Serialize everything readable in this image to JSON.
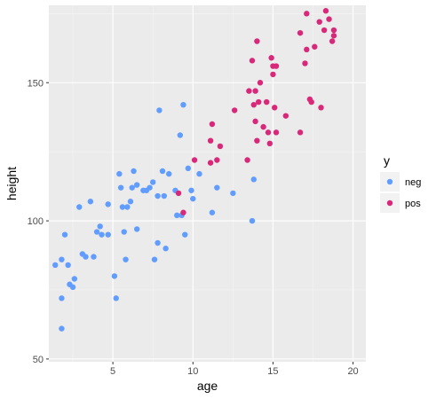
{
  "chart_data": {
    "type": "scatter",
    "title": "",
    "xlabel": "age",
    "ylabel": "height",
    "xlim": [
      1,
      20.8
    ],
    "ylim": [
      49,
      178
    ],
    "x_ticks": [
      5,
      10,
      15,
      20
    ],
    "y_ticks": [
      50,
      100,
      150
    ],
    "grid": true,
    "legend": {
      "title": "y",
      "placement": "right"
    },
    "series": [
      {
        "name": "neg",
        "color": "#619CFF",
        "points": [
          [
            1.4,
            84
          ],
          [
            1.8,
            72
          ],
          [
            1.8,
            86
          ],
          [
            1.8,
            61
          ],
          [
            2.0,
            95
          ],
          [
            2.2,
            84
          ],
          [
            2.3,
            77
          ],
          [
            2.5,
            76
          ],
          [
            2.6,
            79
          ],
          [
            2.9,
            105
          ],
          [
            3.1,
            88
          ],
          [
            3.3,
            87
          ],
          [
            3.6,
            107
          ],
          [
            3.8,
            87
          ],
          [
            4.0,
            96
          ],
          [
            4.2,
            98
          ],
          [
            4.3,
            95
          ],
          [
            4.7,
            95
          ],
          [
            4.7,
            106
          ],
          [
            5.1,
            80
          ],
          [
            5.2,
            72
          ],
          [
            5.4,
            117
          ],
          [
            5.5,
            112
          ],
          [
            5.6,
            105
          ],
          [
            5.7,
            96
          ],
          [
            5.8,
            86
          ],
          [
            5.9,
            105
          ],
          [
            6.1,
            107
          ],
          [
            6.2,
            112
          ],
          [
            6.3,
            118
          ],
          [
            6.5,
            113
          ],
          [
            6.5,
            97
          ],
          [
            6.9,
            111
          ],
          [
            7.1,
            111
          ],
          [
            7.3,
            112
          ],
          [
            7.5,
            114
          ],
          [
            7.6,
            86
          ],
          [
            7.8,
            109
          ],
          [
            7.8,
            92
          ],
          [
            7.9,
            140
          ],
          [
            8.1,
            118
          ],
          [
            8.2,
            109
          ],
          [
            8.3,
            90
          ],
          [
            8.5,
            117
          ],
          [
            8.9,
            111
          ],
          [
            9.0,
            102
          ],
          [
            9.2,
            131
          ],
          [
            9.3,
            102
          ],
          [
            9.4,
            142
          ],
          [
            9.5,
            95
          ],
          [
            9.7,
            119
          ],
          [
            9.9,
            111
          ],
          [
            10.0,
            108
          ],
          [
            10.4,
            117
          ],
          [
            11.2,
            103
          ],
          [
            11.5,
            112
          ],
          [
            12.5,
            110
          ],
          [
            13.7,
            100
          ],
          [
            13.8,
            115
          ]
        ]
      },
      {
        "name": "pos",
        "color": "#D9287A",
        "points": [
          [
            9.1,
            110
          ],
          [
            9.4,
            103
          ],
          [
            10.1,
            122
          ],
          [
            11.1,
            121
          ],
          [
            11.1,
            129
          ],
          [
            11.2,
            135
          ],
          [
            11.5,
            122
          ],
          [
            11.7,
            127
          ],
          [
            12.6,
            140
          ],
          [
            13.4,
            122
          ],
          [
            13.5,
            147
          ],
          [
            13.7,
            158
          ],
          [
            13.8,
            142
          ],
          [
            13.9,
            136
          ],
          [
            13.9,
            147
          ],
          [
            14.0,
            129
          ],
          [
            14.0,
            165
          ],
          [
            14.1,
            143
          ],
          [
            14.2,
            150
          ],
          [
            14.4,
            134
          ],
          [
            14.6,
            143
          ],
          [
            14.7,
            132
          ],
          [
            14.8,
            128
          ],
          [
            14.9,
            159
          ],
          [
            15.0,
            156
          ],
          [
            15.0,
            153
          ],
          [
            15.1,
            141
          ],
          [
            15.2,
            156
          ],
          [
            15.2,
            132
          ],
          [
            15.8,
            138
          ],
          [
            16.7,
            132
          ],
          [
            16.7,
            168
          ],
          [
            17.0,
            157
          ],
          [
            17.1,
            175
          ],
          [
            17.1,
            162
          ],
          [
            17.3,
            144
          ],
          [
            17.4,
            143
          ],
          [
            17.6,
            163
          ],
          [
            17.9,
            172
          ],
          [
            18.0,
            141
          ],
          [
            18.2,
            169
          ],
          [
            18.3,
            176
          ],
          [
            18.5,
            173
          ],
          [
            18.7,
            165
          ],
          [
            18.8,
            167
          ],
          [
            18.8,
            169
          ]
        ]
      }
    ]
  }
}
